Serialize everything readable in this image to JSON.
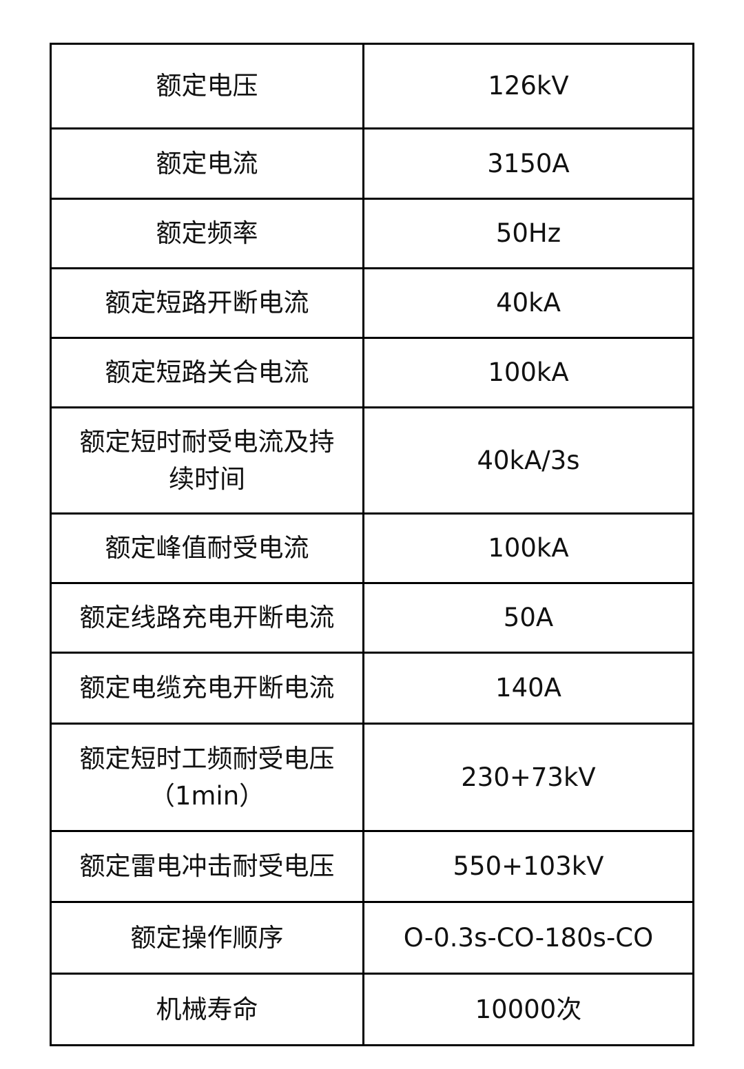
{
  "table": {
    "rows": [
      [
        "额定电压",
        "126kV"
      ],
      [
        "额定电流",
        "3150A"
      ],
      [
        "额定频率",
        "50Hz"
      ],
      [
        "额定短路开断电流",
        "40kA"
      ],
      [
        "额定短路关合电流",
        "100kA"
      ],
      [
        "额定短时耐受电流及持续时间",
        "40kA/3s"
      ],
      [
        "额定峰值耐受电流",
        "100kA"
      ],
      [
        "额定线路充电开断电流",
        "50A"
      ],
      [
        "额定电缆充电开断电流",
        "140A"
      ],
      [
        "额定短时工频耐受电压（1min）",
        "230+73kV"
      ],
      [
        "额定雷电冲击耐受电压",
        "550+103kV"
      ],
      [
        "额定操作顺序",
        "O-0.3s-CO-180s-CO"
      ],
      [
        "机械寿命",
        "10000次"
      ]
    ]
  }
}
